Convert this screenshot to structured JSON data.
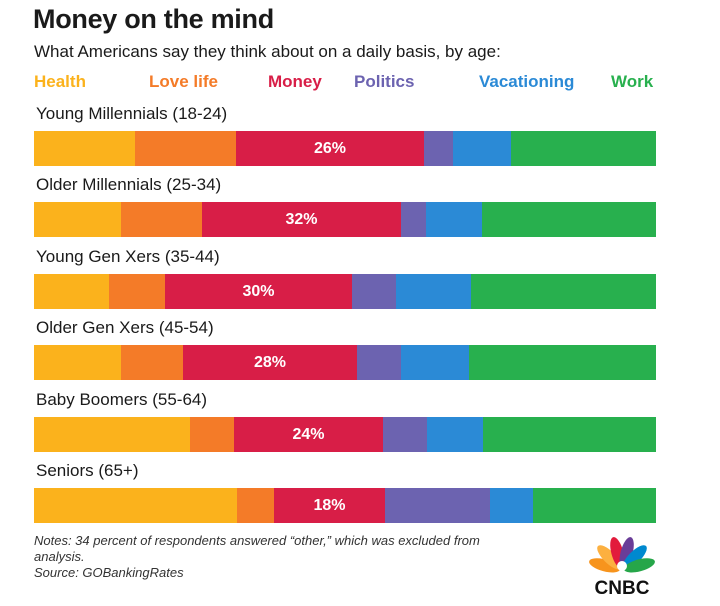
{
  "title": "Money on the mind",
  "subtitle": "What Americans say they think about on a daily basis, by age:",
  "notes": {
    "line1": "Notes: 34 percent of respondents answered “other,” which was excluded from",
    "line2": "analysis.",
    "source": "Source: GOBankingRates"
  },
  "logo": {
    "text": "CNBC",
    "icon": "peacock-logo-icon"
  },
  "chart_data": {
    "type": "bar",
    "stacked": true,
    "orientation": "horizontal",
    "title": "Money on the mind",
    "subtitle": "What Americans say they think about on a daily basis, by age:",
    "legend_position": "top",
    "categories": [
      "Young Millennials (18-24)",
      "Older Millennials (25-34)",
      "Young Gen Xers (35-44)",
      "Older Gen Xers (45-54)",
      "Baby Boomers (55-64)",
      "Seniors (65+)"
    ],
    "series": [
      {
        "name": "Health",
        "color": "#FBB21C",
        "values": [
          14,
          14,
          12,
          14,
          25,
          33
        ]
      },
      {
        "name": "Love life",
        "color": "#F47B28",
        "values": [
          14,
          13,
          9,
          10,
          7,
          6
        ]
      },
      {
        "name": "Money",
        "color": "#D81E47",
        "values": [
          26,
          32,
          30,
          28,
          24,
          18
        ]
      },
      {
        "name": "Politics",
        "color": "#6C63B0",
        "values": [
          4,
          4,
          7,
          7,
          7,
          17
        ]
      },
      {
        "name": "Vacationing",
        "color": "#2B8AD6",
        "values": [
          8,
          9,
          12,
          11,
          9,
          7
        ]
      },
      {
        "name": "Work",
        "color": "#28B04E",
        "values": [
          20,
          28,
          30,
          30,
          28,
          20
        ]
      }
    ],
    "labeled_series": "Money",
    "data_labels": [
      "26%",
      "32%",
      "30%",
      "28%",
      "24%",
      "18%"
    ]
  }
}
